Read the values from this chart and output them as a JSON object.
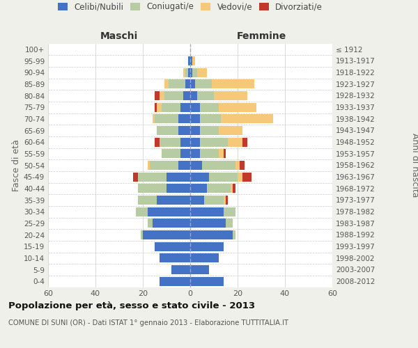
{
  "age_groups": [
    "0-4",
    "5-9",
    "10-14",
    "15-19",
    "20-24",
    "25-29",
    "30-34",
    "35-39",
    "40-44",
    "45-49",
    "50-54",
    "55-59",
    "60-64",
    "65-69",
    "70-74",
    "75-79",
    "80-84",
    "85-89",
    "90-94",
    "95-99",
    "100+"
  ],
  "birth_years": [
    "2008-2012",
    "2003-2007",
    "1998-2002",
    "1993-1997",
    "1988-1992",
    "1983-1987",
    "1978-1982",
    "1973-1977",
    "1968-1972",
    "1963-1967",
    "1958-1962",
    "1953-1957",
    "1948-1952",
    "1943-1947",
    "1938-1942",
    "1933-1937",
    "1928-1932",
    "1923-1927",
    "1918-1922",
    "1913-1917",
    "≤ 1912"
  ],
  "maschi": {
    "celibi": [
      13,
      8,
      13,
      15,
      20,
      16,
      18,
      14,
      10,
      10,
      5,
      4,
      4,
      5,
      5,
      4,
      3,
      2,
      1,
      1,
      0
    ],
    "coniugati": [
      0,
      0,
      0,
      0,
      1,
      2,
      5,
      8,
      12,
      12,
      12,
      8,
      9,
      9,
      10,
      8,
      8,
      7,
      1,
      0,
      0
    ],
    "vedovi": [
      0,
      0,
      0,
      0,
      0,
      0,
      0,
      0,
      0,
      0,
      1,
      0,
      0,
      0,
      1,
      2,
      2,
      2,
      1,
      0,
      0
    ],
    "divorziati": [
      0,
      0,
      0,
      0,
      0,
      0,
      0,
      0,
      0,
      2,
      0,
      0,
      2,
      0,
      0,
      1,
      2,
      0,
      0,
      0,
      0
    ]
  },
  "femmine": {
    "nubili": [
      14,
      8,
      12,
      14,
      18,
      15,
      14,
      6,
      7,
      8,
      5,
      4,
      4,
      4,
      4,
      4,
      3,
      2,
      1,
      1,
      0
    ],
    "coniugate": [
      0,
      0,
      0,
      0,
      1,
      3,
      5,
      8,
      10,
      12,
      14,
      8,
      12,
      8,
      9,
      8,
      7,
      7,
      2,
      0,
      0
    ],
    "vedove": [
      0,
      0,
      0,
      0,
      0,
      0,
      0,
      1,
      1,
      2,
      2,
      2,
      6,
      10,
      22,
      16,
      14,
      18,
      4,
      1,
      0
    ],
    "divorziate": [
      0,
      0,
      0,
      0,
      0,
      0,
      0,
      1,
      1,
      4,
      2,
      1,
      2,
      0,
      0,
      0,
      0,
      0,
      0,
      0,
      0
    ]
  },
  "colors": {
    "celibi_nubili": "#4472c4",
    "coniugati": "#b8cca4",
    "vedovi": "#f5c87a",
    "divorziati": "#c0392b"
  },
  "title": "Popolazione per età, sesso e stato civile - 2013",
  "subtitle": "COMUNE DI SUNI (OR) - Dati ISTAT 1° gennaio 2013 - Elaborazione TUTTITALIA.IT",
  "ylabel_left": "Fasce di età",
  "ylabel_right": "Anni di nascita",
  "xlabel_left": "Maschi",
  "xlabel_right": "Femmine",
  "xlim": 60,
  "bg_color": "#f0f0eb",
  "plot_bg": "#ffffff"
}
